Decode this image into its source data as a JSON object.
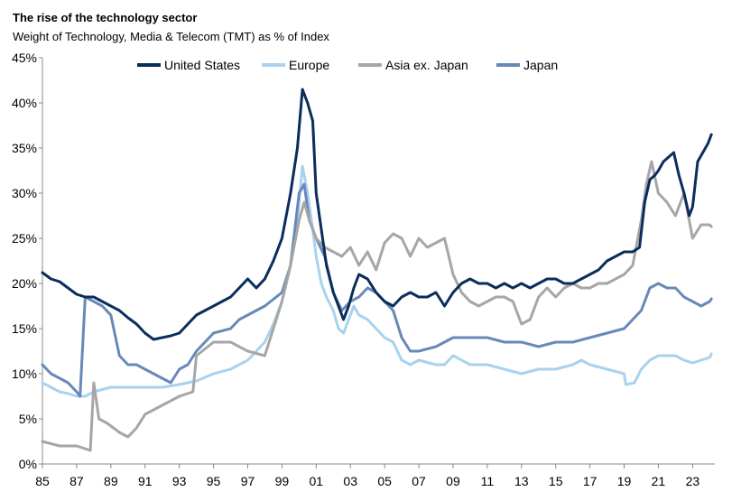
{
  "title": "The rise of the technology sector",
  "subtitle": "Weight of Technology, Media & Telecom (TMT) as % of Index",
  "chart_data": {
    "type": "line",
    "ylim": [
      0,
      45
    ],
    "yticks": [
      0,
      5,
      10,
      15,
      20,
      25,
      30,
      35,
      40,
      45
    ],
    "ytick_labels": [
      "0%",
      "5%",
      "10%",
      "15%",
      "20%",
      "25%",
      "30%",
      "35%",
      "40%",
      "45%"
    ],
    "xlim": [
      1985,
      2024.3
    ],
    "xticks": [
      1985,
      1987,
      1989,
      1991,
      1993,
      1995,
      1997,
      1999,
      2001,
      2003,
      2005,
      2007,
      2009,
      2011,
      2013,
      2015,
      2017,
      2019,
      2021,
      2023
    ],
    "xtick_labels": [
      "85",
      "87",
      "89",
      "91",
      "93",
      "95",
      "97",
      "99",
      "01",
      "03",
      "05",
      "07",
      "09",
      "11",
      "13",
      "15",
      "17",
      "19",
      "21",
      "23"
    ],
    "legend": "top",
    "series": [
      {
        "name": "United States",
        "color": "#0b2d5c",
        "x": [
          1985.0,
          1985.5,
          1986.0,
          1986.5,
          1987.0,
          1987.5,
          1988.0,
          1988.5,
          1989.0,
          1989.5,
          1990.0,
          1990.5,
          1991.0,
          1991.5,
          1992.0,
          1992.5,
          1993.0,
          1993.5,
          1994.0,
          1994.5,
          1995.0,
          1995.5,
          1996.0,
          1996.5,
          1997.0,
          1997.5,
          1998.0,
          1998.5,
          1999.0,
          1999.5,
          1999.9,
          2000.2,
          2000.5,
          2000.8,
          2001.0,
          2001.3,
          2001.6,
          2002.0,
          2002.3,
          2002.6,
          2002.9,
          2003.2,
          2003.5,
          2004.0,
          2004.5,
          2005.0,
          2005.5,
          2006.0,
          2006.5,
          2007.0,
          2007.5,
          2008.0,
          2008.5,
          2009.0,
          2009.5,
          2010.0,
          2010.5,
          2011.0,
          2011.5,
          2012.0,
          2012.5,
          2013.0,
          2013.5,
          2014.0,
          2014.5,
          2015.0,
          2015.5,
          2016.0,
          2016.5,
          2017.0,
          2017.5,
          2018.0,
          2018.5,
          2019.0,
          2019.5,
          2019.9,
          2020.2,
          2020.5,
          2020.8,
          2021.0,
          2021.3,
          2021.6,
          2021.9,
          2022.2,
          2022.5,
          2022.8,
          2023.0,
          2023.3,
          2023.6,
          2023.9,
          2024.1
        ],
        "y": [
          21.2,
          20.5,
          20.2,
          19.5,
          18.8,
          18.5,
          18.5,
          18.0,
          17.5,
          17.0,
          16.2,
          15.5,
          14.5,
          13.8,
          14.0,
          14.2,
          14.5,
          15.5,
          16.5,
          17.0,
          17.5,
          18.0,
          18.5,
          19.5,
          20.5,
          19.5,
          20.5,
          22.5,
          25.0,
          30.0,
          35.0,
          41.5,
          40.0,
          38.0,
          30.0,
          26.0,
          22.0,
          19.0,
          17.5,
          16.0,
          17.5,
          19.5,
          21.0,
          20.5,
          19.0,
          18.0,
          17.5,
          18.5,
          19.0,
          18.5,
          18.5,
          19.0,
          17.5,
          19.0,
          20.0,
          20.5,
          20.0,
          20.0,
          19.5,
          20.0,
          19.5,
          20.0,
          19.5,
          20.0,
          20.5,
          20.5,
          20.0,
          20.0,
          20.5,
          21.0,
          21.5,
          22.5,
          23.0,
          23.5,
          23.5,
          24.0,
          29.0,
          31.5,
          32.0,
          32.5,
          33.5,
          34.0,
          34.5,
          32.0,
          30.0,
          27.5,
          28.5,
          33.5,
          34.5,
          35.5,
          36.5
        ]
      },
      {
        "name": "Europe",
        "color": "#a8d2ee",
        "x": [
          1985.0,
          1985.5,
          1986.0,
          1986.5,
          1987.0,
          1987.5,
          1988.0,
          1989.0,
          1990.0,
          1991.0,
          1992.0,
          1993.0,
          1994.0,
          1995.0,
          1996.0,
          1997.0,
          1998.0,
          1998.5,
          1999.0,
          1999.5,
          1999.9,
          2000.2,
          2000.5,
          2000.8,
          2001.0,
          2001.3,
          2001.6,
          2002.0,
          2002.3,
          2002.6,
          2002.9,
          2003.2,
          2003.5,
          2004.0,
          2004.5,
          2005.0,
          2005.5,
          2006.0,
          2006.5,
          2007.0,
          2008.0,
          2008.5,
          2009.0,
          2010.0,
          2011.0,
          2012.0,
          2013.0,
          2014.0,
          2015.0,
          2016.0,
          2016.5,
          2017.0,
          2018.0,
          2019.0,
          2019.1,
          2019.6,
          2020.0,
          2020.5,
          2021.0,
          2021.5,
          2022.0,
          2022.5,
          2023.0,
          2023.5,
          2024.0,
          2024.1
        ],
        "y": [
          9.0,
          8.5,
          8.0,
          7.8,
          7.5,
          7.5,
          8.0,
          8.5,
          8.5,
          8.5,
          8.5,
          8.8,
          9.2,
          10.0,
          10.5,
          11.5,
          13.5,
          15.5,
          18.0,
          22.0,
          27.0,
          33.0,
          30.0,
          26.0,
          23.0,
          20.0,
          18.5,
          17.0,
          15.0,
          14.5,
          16.0,
          17.5,
          16.5,
          16.0,
          15.0,
          14.0,
          13.5,
          11.5,
          11.0,
          11.5,
          11.0,
          11.0,
          12.0,
          11.0,
          11.0,
          10.5,
          10.0,
          10.5,
          10.5,
          11.0,
          11.5,
          11.0,
          10.5,
          10.0,
          8.8,
          9.0,
          10.5,
          11.5,
          12.0,
          12.0,
          12.0,
          11.5,
          11.2,
          11.5,
          11.8,
          12.2
        ]
      },
      {
        "name": "Asia ex. Japan",
        "color": "#a6a6a6",
        "x": [
          1985.0,
          1986.0,
          1987.0,
          1987.8,
          1988.0,
          1988.3,
          1988.8,
          1989.5,
          1990.0,
          1990.5,
          1991.0,
          1992.0,
          1993.0,
          1993.8,
          1994.0,
          1995.0,
          1996.0,
          1997.0,
          1998.0,
          1999.0,
          1999.5,
          2000.0,
          2000.3,
          2000.6,
          2001.0,
          2001.5,
          2002.0,
          2002.5,
          2003.0,
          2003.5,
          2004.0,
          2004.5,
          2005.0,
          2005.5,
          2006.0,
          2006.5,
          2007.0,
          2007.5,
          2008.0,
          2008.5,
          2009.0,
          2009.5,
          2010.0,
          2010.5,
          2011.0,
          2011.5,
          2012.0,
          2012.5,
          2013.0,
          2013.5,
          2014.0,
          2014.5,
          2015.0,
          2015.5,
          2016.0,
          2016.5,
          2017.0,
          2017.5,
          2018.0,
          2018.5,
          2019.0,
          2019.5,
          2020.0,
          2020.3,
          2020.6,
          2021.0,
          2021.5,
          2022.0,
          2022.5,
          2023.0,
          2023.5,
          2024.0,
          2024.1
        ],
        "y": [
          2.5,
          2.0,
          2.0,
          1.5,
          9.0,
          5.0,
          4.5,
          3.5,
          3.0,
          4.0,
          5.5,
          6.5,
          7.5,
          8.0,
          12.0,
          13.5,
          13.5,
          12.5,
          12.0,
          18.0,
          22.0,
          27.0,
          29.0,
          27.0,
          25.0,
          24.0,
          23.5,
          23.0,
          24.0,
          22.0,
          23.5,
          21.5,
          24.5,
          25.5,
          25.0,
          23.0,
          25.0,
          24.0,
          24.5,
          25.0,
          21.0,
          19.0,
          18.0,
          17.5,
          18.0,
          18.5,
          18.5,
          18.0,
          15.5,
          16.0,
          18.5,
          19.5,
          18.5,
          19.5,
          20.0,
          19.5,
          19.5,
          20.0,
          20.0,
          20.5,
          21.0,
          22.0,
          27.0,
          31.0,
          33.5,
          30.0,
          29.0,
          27.5,
          30.0,
          25.0,
          26.5,
          26.5,
          26.3
        ]
      },
      {
        "name": "Japan",
        "color": "#6889b8",
        "x": [
          1985.0,
          1985.5,
          1986.0,
          1986.5,
          1987.0,
          1987.2,
          1987.5,
          1988.0,
          1988.5,
          1989.0,
          1989.5,
          1990.0,
          1990.5,
          1991.0,
          1991.5,
          1992.0,
          1992.5,
          1993.0,
          1993.5,
          1994.0,
          1995.0,
          1996.0,
          1996.5,
          1997.0,
          1998.0,
          1999.0,
          1999.5,
          2000.0,
          2000.3,
          2000.6,
          2001.0,
          2001.5,
          2002.0,
          2002.5,
          2003.0,
          2003.5,
          2004.0,
          2004.5,
          2005.0,
          2005.5,
          2006.0,
          2006.5,
          2007.0,
          2008.0,
          2008.5,
          2009.0,
          2010.0,
          2011.0,
          2012.0,
          2013.0,
          2014.0,
          2015.0,
          2016.0,
          2017.0,
          2018.0,
          2019.0,
          2019.5,
          2020.0,
          2020.5,
          2021.0,
          2021.5,
          2022.0,
          2022.5,
          2023.0,
          2023.5,
          2024.0,
          2024.1
        ],
        "y": [
          11.0,
          10.0,
          9.5,
          9.0,
          8.0,
          7.5,
          18.5,
          18.0,
          17.5,
          16.5,
          12.0,
          11.0,
          11.0,
          10.5,
          10.0,
          9.5,
          9.0,
          10.5,
          11.0,
          12.5,
          14.5,
          15.0,
          16.0,
          16.5,
          17.5,
          19.0,
          22.0,
          30.0,
          31.0,
          27.0,
          25.0,
          23.0,
          19.0,
          17.0,
          18.0,
          18.5,
          19.5,
          19.0,
          18.0,
          17.0,
          14.0,
          12.5,
          12.5,
          13.0,
          13.5,
          14.0,
          14.0,
          14.0,
          13.5,
          13.5,
          13.0,
          13.5,
          13.5,
          14.0,
          14.5,
          15.0,
          16.0,
          17.0,
          19.5,
          20.0,
          19.5,
          19.5,
          18.5,
          18.0,
          17.5,
          18.0,
          18.3
        ]
      }
    ]
  }
}
